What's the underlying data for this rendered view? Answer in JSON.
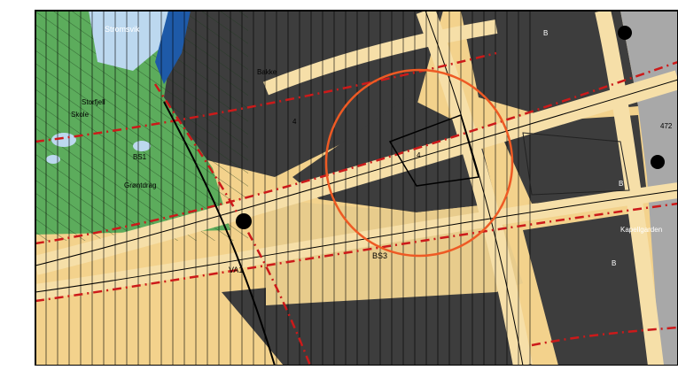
{
  "map": {
    "colors": {
      "residential": "#f3d28c",
      "built_dark": "#3d3d3d",
      "built_medium": "#5e5e5e",
      "built_light": "#a8a8a8",
      "forest": "#5cac5c",
      "water": "#bcd8ef",
      "water_dark": "#1e5aa8",
      "road": "#f6dfa8",
      "boundary_red": "#cc1a1a",
      "highlight_circle": "#ee5a24",
      "frame": "#000000"
    },
    "labels": {
      "lake": "Stromsvik",
      "building_a": "Bakke",
      "park_a": "Storfjell",
      "park_b": "Skole",
      "park_c": "Grøntdrag",
      "code_bs1": "BS1",
      "code_b1": "B",
      "code_b2": "B",
      "code_b3": "B",
      "code_b4": "B",
      "code_bs3": "BS3",
      "code_va1": "VA1",
      "code_a": "4",
      "code_b": "4",
      "kapell": "Kapellgarden",
      "right_code": "472"
    }
  }
}
